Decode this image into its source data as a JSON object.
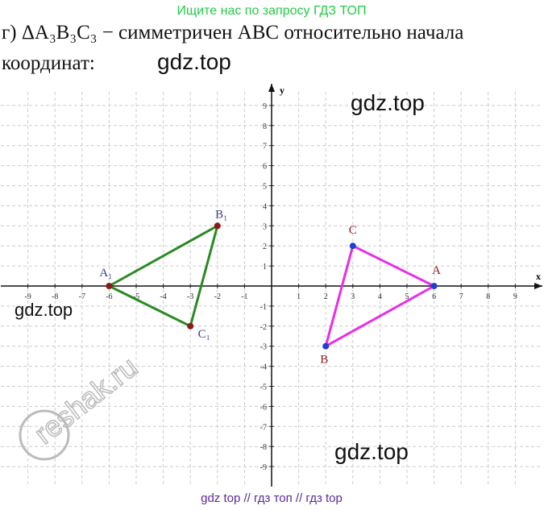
{
  "header": {
    "notice": "Ищите нас по запросу ГДЗ ТОП",
    "line1": "г) ΔA₃B₃C₃ − симметричен ABC относительно начала",
    "line2": "координат:"
  },
  "watermarks": [
    "gdz.top",
    "gdz.top",
    "gdz.top",
    "gdz.top",
    "reshak.ru"
  ],
  "footer": "gdz top  //  гдз топ  //  гдз top",
  "chart_data": {
    "type": "line",
    "x_label": "x",
    "y_label": "y",
    "xlim": [
      -10,
      10
    ],
    "ylim": [
      -10,
      10
    ],
    "xticks": [
      -9,
      -8,
      -7,
      -6,
      -5,
      -4,
      -3,
      -2,
      -1,
      1,
      2,
      3,
      4,
      5,
      6,
      7,
      8,
      9
    ],
    "yticks": [
      -9,
      -8,
      -7,
      -6,
      -5,
      -4,
      -3,
      -2,
      -1,
      1,
      2,
      3,
      4,
      5,
      6,
      7,
      8,
      9
    ],
    "grid": true,
    "closed": true,
    "series": [
      {
        "color": "#2a8a22",
        "marker_color": "#8b1a1a",
        "label_color": "#3a3a8a",
        "x": [
          -6,
          -2,
          -3
        ],
        "y": [
          0,
          3,
          -2
        ],
        "point_labels": [
          "A₁",
          "B₁",
          "C₁"
        ]
      },
      {
        "color": "#e82ee8",
        "marker_color": "#1f3fd0",
        "label_color": "#8b1a1a",
        "x": [
          6,
          3,
          2
        ],
        "y": [
          0,
          2,
          -3
        ],
        "point_labels": [
          "A",
          "C",
          "B"
        ]
      }
    ]
  }
}
